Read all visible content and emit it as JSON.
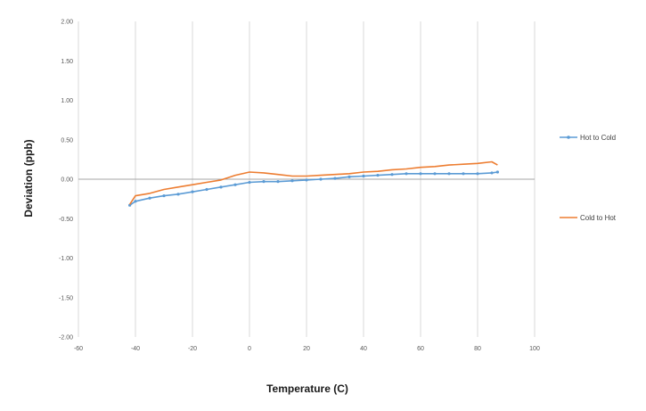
{
  "chart_data": {
    "type": "line",
    "title": "",
    "xlabel": "Temperature (C)",
    "ylabel": "Deviation (ppb)",
    "xlim": [
      -60,
      100
    ],
    "ylim": [
      -2.0,
      2.0
    ],
    "x_ticks": [
      "-60",
      "-40",
      "-20",
      "0",
      "20",
      "40",
      "60",
      "80",
      "100"
    ],
    "y_ticks": [
      "2.00",
      "1.50",
      "1.00",
      "0.50",
      "0.00",
      "-0.50",
      "-1.00",
      "-1.50",
      "-2.00"
    ],
    "grid": "vertical",
    "legend_placement": "right",
    "series": [
      {
        "name": "Hot to Cold",
        "color": "#5b9bd5",
        "marker": "dot",
        "x": [
          -42,
          -40,
          -35,
          -30,
          -25,
          -20,
          -15,
          -10,
          -5,
          0,
          5,
          10,
          15,
          20,
          25,
          30,
          35,
          40,
          45,
          50,
          55,
          60,
          65,
          70,
          75,
          80,
          85,
          87
        ],
        "y": [
          -0.33,
          -0.28,
          -0.24,
          -0.21,
          -0.19,
          -0.16,
          -0.13,
          -0.1,
          -0.07,
          -0.04,
          -0.03,
          -0.03,
          -0.02,
          -0.01,
          0.0,
          0.01,
          0.03,
          0.04,
          0.05,
          0.06,
          0.07,
          0.07,
          0.07,
          0.07,
          0.07,
          0.07,
          0.08,
          0.09
        ]
      },
      {
        "name": "Cold to Hot",
        "color": "#ed7d31",
        "marker": "none",
        "x": [
          -42,
          -40,
          -35,
          -30,
          -25,
          -20,
          -15,
          -10,
          -5,
          0,
          5,
          10,
          15,
          20,
          25,
          30,
          35,
          40,
          45,
          50,
          55,
          60,
          65,
          70,
          75,
          80,
          85,
          87
        ],
        "y": [
          -0.32,
          -0.21,
          -0.18,
          -0.13,
          -0.1,
          -0.07,
          -0.04,
          -0.01,
          0.05,
          0.09,
          0.08,
          0.06,
          0.04,
          0.04,
          0.05,
          0.06,
          0.07,
          0.09,
          0.1,
          0.12,
          0.13,
          0.15,
          0.16,
          0.18,
          0.19,
          0.2,
          0.22,
          0.18
        ]
      }
    ]
  }
}
